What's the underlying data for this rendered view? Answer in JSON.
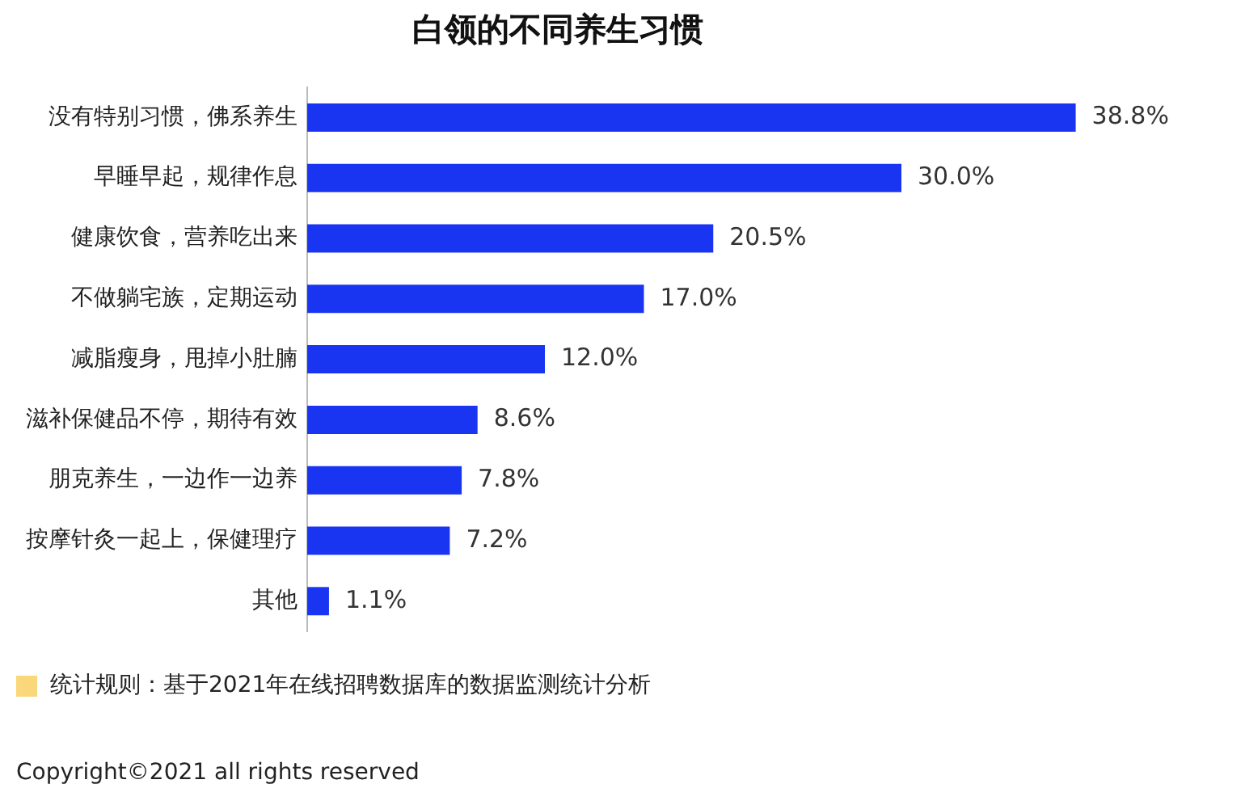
{
  "chart_data": {
    "type": "bar",
    "orientation": "horizontal",
    "title": "白领的不同养生习惯",
    "categories": [
      "没有特别习惯，佛系养生",
      "早睡早起，规律作息",
      "健康饮食，营养吃出来",
      "不做躺宅族，定期运动",
      "减脂瘦身，甩掉小肚腩",
      "滋补保健品不停，期待有效",
      "朋克养生，一边作一边养",
      "按摩针灸一起上，保健理疗",
      "其他"
    ],
    "values": [
      38.8,
      30.0,
      20.5,
      17.0,
      12.0,
      8.6,
      7.8,
      7.2,
      1.1
    ],
    "value_labels": [
      "38.8%",
      "30.0%",
      "20.5%",
      "17.0%",
      "12.0%",
      "8.6%",
      "7.8%",
      "7.2%",
      "1.1%"
    ],
    "color": "#1a35f2",
    "tick_labels": "y",
    "grid": false,
    "legend": false,
    "annotations": [
      "统计规则：基于2021年在线招聘数据库的数据监测统计分析",
      "Copyright©2021 all rights reserved"
    ]
  }
}
